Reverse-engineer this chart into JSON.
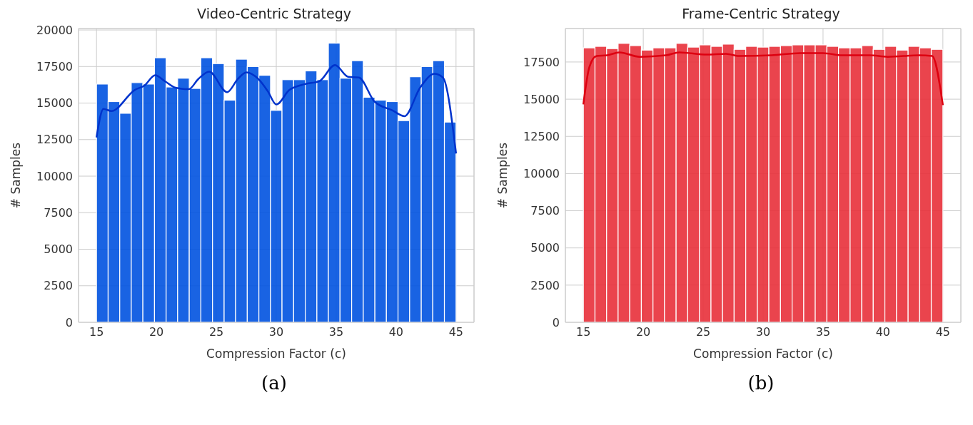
{
  "chart_data": [
    {
      "type": "histogram",
      "title": "Video-Centric Strategy",
      "xlabel": "Compression Factor (c)",
      "ylabel": "# Samples",
      "annotations": [
        "(a)"
      ],
      "color": "#0052e0",
      "bins": [
        15,
        15.97,
        16.94,
        17.9,
        18.87,
        19.84,
        20.81,
        21.77,
        22.74,
        23.71,
        24.68,
        25.65,
        26.61,
        27.58,
        28.55,
        29.52,
        30.48,
        31.45,
        32.42,
        33.39,
        34.35,
        35.32,
        36.29,
        37.26,
        38.23,
        39.19,
        40.16,
        41.13,
        42.1,
        43.06,
        44.03,
        45
      ],
      "values": [
        16300,
        15100,
        14300,
        16400,
        16300,
        18100,
        16100,
        16700,
        16000,
        18100,
        17700,
        15200,
        18000,
        17500,
        16900,
        14500,
        16600,
        16600,
        17200,
        16600,
        19100,
        16700,
        17900,
        15400,
        15200,
        15100,
        13800,
        16800,
        17500,
        17900,
        13700
      ],
      "series": [
        {
          "type": "line",
          "color": "#0033cc",
          "x": [
            15,
            15.58,
            16.23,
            18.2,
            19,
            19.9,
            20.7,
            21.6,
            22.7,
            23.5,
            24.4,
            25.9,
            26.8,
            27.5,
            28.5,
            29.3,
            30,
            31.1,
            32.4,
            33.6,
            34.9,
            36,
            36.9,
            38.2,
            39.7,
            40.7,
            42,
            43.2,
            43.9,
            45
          ],
          "values": [
            12650,
            14600,
            14450,
            15900,
            16200,
            16900,
            16500,
            16050,
            15950,
            16650,
            17150,
            15750,
            16650,
            17100,
            16650,
            15800,
            14900,
            15900,
            16300,
            16500,
            17600,
            16800,
            16750,
            15100,
            14500,
            14100,
            16050,
            17000,
            16750,
            11550
          ]
        }
      ],
      "xlim": [
        13.5,
        46.5
      ],
      "xticks": [
        15,
        20,
        25,
        30,
        35,
        40,
        45
      ],
      "ylim": [
        0,
        20100
      ],
      "yticks": [
        0,
        2500,
        5000,
        7500,
        10000,
        12500,
        15000,
        17500,
        20000
      ],
      "grid": true
    },
    {
      "type": "histogram",
      "title": "Frame-Centric Strategy",
      "xlabel": "Compression Factor (c)",
      "ylabel": "# Samples",
      "annotations": [
        "(b)"
      ],
      "color": "#e8303a",
      "bins": [
        15,
        15.97,
        16.94,
        17.9,
        18.87,
        19.84,
        20.81,
        21.77,
        22.74,
        23.71,
        24.68,
        25.65,
        26.61,
        27.58,
        28.55,
        29.52,
        30.48,
        31.45,
        32.42,
        33.39,
        34.35,
        35.32,
        36.29,
        37.26,
        38.23,
        39.19,
        40.16,
        41.13,
        42.1,
        43.06,
        44.03,
        45
      ],
      "values": [
        18450,
        18550,
        18400,
        18750,
        18600,
        18300,
        18450,
        18450,
        18750,
        18500,
        18650,
        18550,
        18700,
        18350,
        18550,
        18500,
        18550,
        18600,
        18650,
        18650,
        18650,
        18550,
        18450,
        18450,
        18600,
        18350,
        18550,
        18300,
        18550,
        18450,
        18350
      ],
      "series": [
        {
          "type": "line",
          "color": "#dd0010",
          "x": [
            15,
            15.5,
            16.1,
            17,
            18,
            19.7,
            21.9,
            23,
            25.3,
            26.9,
            28,
            30.7,
            33.1,
            35,
            36.6,
            38.9,
            40.4,
            43,
            44.1,
            45
          ],
          "values": [
            14650,
            17150,
            17900,
            17950,
            18150,
            17850,
            17950,
            18150,
            18000,
            18050,
            17900,
            17950,
            18100,
            18100,
            17950,
            17950,
            17850,
            17950,
            17900,
            14600
          ]
        }
      ],
      "xlim": [
        13.5,
        46.5
      ],
      "xticks": [
        15,
        20,
        25,
        30,
        35,
        40,
        45
      ],
      "ylim": [
        0,
        19750
      ],
      "yticks": [
        0,
        2500,
        5000,
        7500,
        10000,
        12500,
        15000,
        17500
      ],
      "grid": true
    }
  ]
}
